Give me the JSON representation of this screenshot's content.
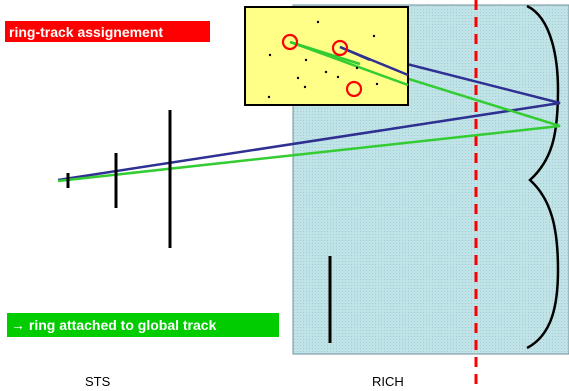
{
  "title": "ring-track assignement",
  "caption": "→ ring attached to global track",
  "detectors": {
    "sts_label": "STS",
    "rich_label": "RICH"
  },
  "colors": {
    "title_bg": "#ff0000",
    "caption_bg": "#00cc00",
    "rich_volume": "#bfe3e6",
    "photodetector_plane": "#ffff88",
    "track_reconstructed": "#2e3092",
    "track_projected": "#33cc33",
    "ring_marker": "#ff0000",
    "beam_axis": "#ff0000"
  }
}
